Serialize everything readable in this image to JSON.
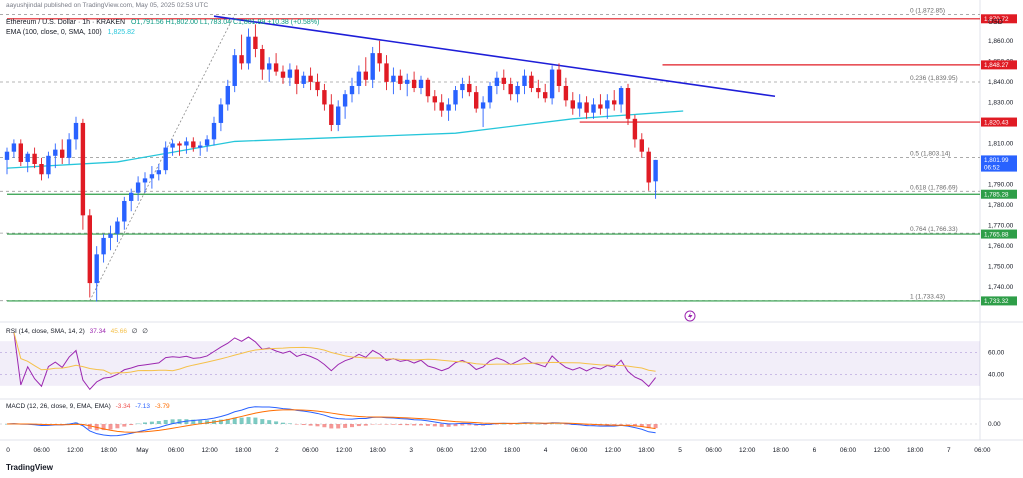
{
  "header": {
    "author": "aayushjindal published on TradingView.com, May 05, 2025 02:53 UTC",
    "symbol": "Ethereum / U.S. Dollar · 1h · KRAKEN",
    "ohlc": "O1,791.56  H1,802.00  L1,783.04  C1,801.99  +10.38 (+0.58%)",
    "ema_label": "EMA (100, close, 0, SMA, 100)",
    "ema_value": "1,825.82"
  },
  "rsi_label": "RSI (14, close, SMA, 14, 2)",
  "rsi_values": [
    "37.34",
    "45.66",
    "∅",
    "∅"
  ],
  "macd_label": "MACD (12, 26, close, 9, EMA, EMA)",
  "macd_values": [
    "-3.34",
    "-7.13",
    "-3.79"
  ],
  "logo_text": "TradingView",
  "currency": "USD",
  "colors": {
    "bull": "#2962ff",
    "bear": "#e01b24",
    "ema": "#26c6da",
    "trend": "#1e1ed8",
    "resistance": "#e01b24",
    "support": "#2e9e48",
    "fib": "#6b6b6b",
    "rsi": "#9c27b0",
    "rsi_ma": "#f5c14a",
    "macd": "#2962ff",
    "signal": "#ff6d00",
    "hist_pos": "#26a69a",
    "hist_neg": "#ef5350"
  },
  "chart_data": {
    "type": "candlestick",
    "ylim": [
      1725,
      1875
    ],
    "ticks": [
      "1,740.00",
      "1,750.00",
      "1,760.00",
      "1,770.00",
      "1,780.00",
      "1,790.00",
      "1,810.00",
      "1,830.00",
      "1,840.00",
      "1,850.00",
      "1,860.00"
    ],
    "tick_values": [
      1740,
      1750,
      1760,
      1770,
      1780,
      1790,
      1810,
      1830,
      1840,
      1850,
      1860
    ],
    "x_labels": [
      "0",
      "06:00",
      "12:00",
      "18:00",
      "May",
      "06:00",
      "12:00",
      "18:00",
      "2",
      "06:00",
      "12:00",
      "18:00",
      "3",
      "06:00",
      "12:00",
      "18:00",
      "4",
      "06:00",
      "12:00",
      "18:00",
      "5",
      "06:00",
      "12:00",
      "18:00",
      "6",
      "06:00",
      "12:00",
      "18:00",
      "7",
      "06:00"
    ],
    "price_labels": [
      {
        "text": "1,870.72",
        "value": 1870.72,
        "color": "#e01b24"
      },
      {
        "text": "1,848.27",
        "value": 1848.27,
        "color": "#e01b24"
      },
      {
        "text": "1,820.43",
        "value": 1820.43,
        "color": "#e01b24"
      },
      {
        "text": "1,801.99",
        "value": 1801.99,
        "color": "#2962ff"
      },
      {
        "text": "06:52",
        "value": 1798.5,
        "color": "#2962ff"
      },
      {
        "text": "1,785.28",
        "value": 1785.28,
        "color": "#2e9e48"
      },
      {
        "text": "1,765.88",
        "value": 1765.88,
        "color": "#2e9e48"
      },
      {
        "text": "1,733.32",
        "value": 1733.32,
        "color": "#2e9e48"
      }
    ],
    "fib_levels": [
      {
        "label": "0 (1,872.85)",
        "value": 1872.85
      },
      {
        "label": "0.236 (1,839.95)",
        "value": 1839.95
      },
      {
        "label": "0.5 (1,803.14)",
        "value": 1803.14
      },
      {
        "label": "0.618 (1,786.69)",
        "value": 1786.69
      },
      {
        "label": "0.764 (1,766.33)",
        "value": 1766.33
      },
      {
        "label": "1 (1,733.43)",
        "value": 1733.43
      }
    ],
    "h_lines": [
      {
        "value": 1870.72,
        "from": 0,
        "color": "#e01b24"
      },
      {
        "value": 1848.27,
        "from": 95,
        "color": "#e01b24"
      },
      {
        "value": 1820.43,
        "from": 83,
        "color": "#e01b24"
      },
      {
        "value": 1785.28,
        "from": 0,
        "color": "#2e9e48"
      },
      {
        "value": 1765.88,
        "from": 0,
        "color": "#2e9e48"
      },
      {
        "value": 1733.32,
        "from": 0,
        "color": "#2e9e48"
      }
    ],
    "trendline": {
      "x0": 45,
      "y0": 1872,
      "x1": 165,
      "y1": 1833
    },
    "candles": [
      [
        1802,
        1808,
        1795,
        1806
      ],
      [
        1806,
        1812,
        1803,
        1810
      ],
      [
        1810,
        1812,
        1799,
        1801
      ],
      [
        1801,
        1806,
        1796,
        1805
      ],
      [
        1805,
        1808,
        1798,
        1800
      ],
      [
        1800,
        1803,
        1792,
        1795
      ],
      [
        1795,
        1806,
        1793,
        1804
      ],
      [
        1804,
        1810,
        1798,
        1807
      ],
      [
        1807,
        1812,
        1800,
        1803
      ],
      [
        1803,
        1815,
        1800,
        1812
      ],
      [
        1812,
        1823,
        1807,
        1820
      ],
      [
        1820,
        1822,
        1768,
        1775
      ],
      [
        1775,
        1778,
        1735,
        1742
      ],
      [
        1742,
        1760,
        1733,
        1756
      ],
      [
        1756,
        1766,
        1752,
        1764
      ],
      [
        1764,
        1770,
        1758,
        1766
      ],
      [
        1766,
        1774,
        1762,
        1772
      ],
      [
        1772,
        1784,
        1768,
        1782
      ],
      [
        1782,
        1788,
        1777,
        1786
      ],
      [
        1786,
        1794,
        1782,
        1791
      ],
      [
        1791,
        1796,
        1786,
        1793
      ],
      [
        1793,
        1799,
        1788,
        1795
      ],
      [
        1795,
        1800,
        1792,
        1797
      ],
      [
        1797,
        1811,
        1795,
        1808
      ],
      [
        1808,
        1812,
        1804,
        1810
      ],
      [
        1810,
        1811,
        1804,
        1809
      ],
      [
        1809,
        1813,
        1805,
        1811
      ],
      [
        1811,
        1813,
        1806,
        1808
      ],
      [
        1808,
        1811,
        1804,
        1809
      ],
      [
        1809,
        1814,
        1806,
        1812
      ],
      [
        1812,
        1823,
        1809,
        1820
      ],
      [
        1820,
        1832,
        1816,
        1829
      ],
      [
        1829,
        1841,
        1826,
        1838
      ],
      [
        1838,
        1856,
        1835,
        1853
      ],
      [
        1853,
        1863,
        1846,
        1849
      ],
      [
        1849,
        1866,
        1846,
        1862
      ],
      [
        1862,
        1868,
        1852,
        1856
      ],
      [
        1856,
        1858,
        1841,
        1846
      ],
      [
        1846,
        1852,
        1840,
        1849
      ],
      [
        1849,
        1854,
        1843,
        1845
      ],
      [
        1845,
        1848,
        1839,
        1842
      ],
      [
        1842,
        1849,
        1838,
        1846
      ],
      [
        1846,
        1848,
        1834,
        1839
      ],
      [
        1839,
        1845,
        1837,
        1843
      ],
      [
        1843,
        1847,
        1836,
        1840
      ],
      [
        1840,
        1844,
        1833,
        1836
      ],
      [
        1836,
        1839,
        1826,
        1829
      ],
      [
        1829,
        1834,
        1816,
        1819
      ],
      [
        1819,
        1831,
        1816,
        1828
      ],
      [
        1828,
        1836,
        1822,
        1834
      ],
      [
        1834,
        1842,
        1830,
        1838
      ],
      [
        1838,
        1848,
        1834,
        1845
      ],
      [
        1845,
        1852,
        1838,
        1841
      ],
      [
        1841,
        1857,
        1837,
        1854
      ],
      [
        1854,
        1860,
        1845,
        1849
      ],
      [
        1849,
        1853,
        1836,
        1840
      ],
      [
        1840,
        1847,
        1834,
        1843
      ],
      [
        1843,
        1846,
        1836,
        1839
      ],
      [
        1839,
        1844,
        1833,
        1841
      ],
      [
        1841,
        1845,
        1835,
        1837
      ],
      [
        1837,
        1843,
        1834,
        1841
      ],
      [
        1841,
        1842,
        1830,
        1833
      ],
      [
        1833,
        1836,
        1826,
        1830
      ],
      [
        1830,
        1834,
        1823,
        1826
      ],
      [
        1826,
        1832,
        1821,
        1829
      ],
      [
        1829,
        1838,
        1826,
        1836
      ],
      [
        1836,
        1842,
        1832,
        1839
      ],
      [
        1839,
        1843,
        1833,
        1835
      ],
      [
        1835,
        1838,
        1825,
        1827
      ],
      [
        1827,
        1833,
        1818,
        1830
      ],
      [
        1830,
        1840,
        1827,
        1838
      ],
      [
        1838,
        1845,
        1834,
        1842
      ],
      [
        1842,
        1846,
        1836,
        1839
      ],
      [
        1839,
        1842,
        1831,
        1834
      ],
      [
        1834,
        1840,
        1830,
        1838
      ],
      [
        1838,
        1846,
        1834,
        1843
      ],
      [
        1843,
        1845,
        1835,
        1837
      ],
      [
        1837,
        1841,
        1832,
        1835
      ],
      [
        1835,
        1839,
        1830,
        1832
      ],
      [
        1832,
        1848,
        1829,
        1846
      ],
      [
        1846,
        1849,
        1835,
        1838
      ],
      [
        1838,
        1842,
        1828,
        1831
      ],
      [
        1831,
        1835,
        1824,
        1827
      ],
      [
        1827,
        1834,
        1823,
        1830
      ],
      [
        1830,
        1833,
        1822,
        1825
      ],
      [
        1825,
        1832,
        1822,
        1829
      ],
      [
        1829,
        1834,
        1824,
        1827
      ],
      [
        1827,
        1834,
        1822,
        1831
      ],
      [
        1831,
        1836,
        1826,
        1829
      ],
      [
        1829,
        1838,
        1825,
        1837
      ],
      [
        1837,
        1839,
        1819,
        1822
      ],
      [
        1822,
        1824,
        1808,
        1812
      ],
      [
        1812,
        1815,
        1803,
        1806
      ],
      [
        1806,
        1808,
        1787,
        1791
      ],
      [
        1791.56,
        1802,
        1783.04,
        1801.99
      ]
    ],
    "ema": [
      1798,
      1801,
      1811,
      1813,
      1815,
      1822,
      1825.8
    ],
    "rsi": {
      "ylim": [
        20,
        80
      ],
      "ticks": [
        60,
        40
      ],
      "band": [
        30,
        70
      ]
    },
    "macd": {
      "ticks": [
        0
      ]
    }
  }
}
